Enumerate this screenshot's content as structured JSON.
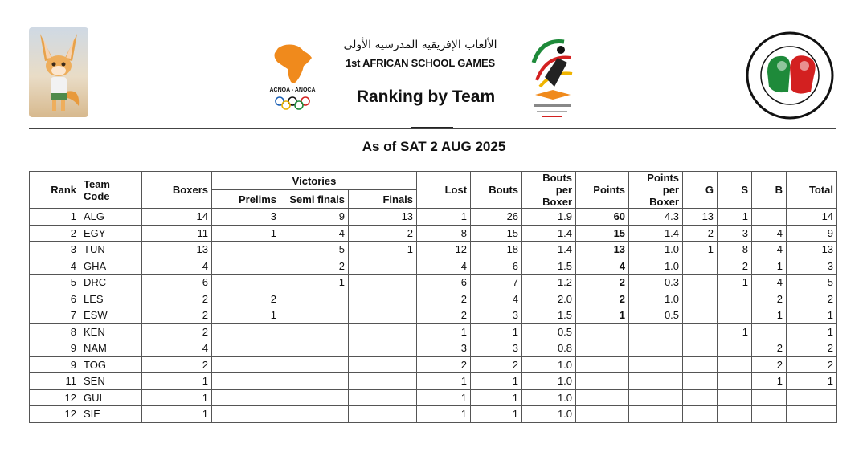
{
  "header": {
    "title_ar": "الألعاب الإفريقية المدرسية الأولى",
    "title_en": "1st AFRICAN SCHOOL GAMES",
    "main_title": "Ranking by Team",
    "acnoa_label": "ACNOA - ANOCA",
    "as_of": "As of SAT 2 AUG 2025"
  },
  "colors": {
    "acnoa_orange": "#f08a1c",
    "fed_red": "#d32020",
    "fed_green": "#1e8a3a"
  },
  "table": {
    "headers": {
      "rank": "Rank",
      "team_code": "Team Code",
      "boxers": "Boxers",
      "victories": "Victories",
      "prelims": "Prelims",
      "semi": "Semi finals",
      "finals": "Finals",
      "lost": "Lost",
      "bouts": "Bouts",
      "bouts_per_boxer": "Bouts per Boxer",
      "points": "Points",
      "points_per_boxer": "Points per Boxer",
      "g": "G",
      "s": "S",
      "b": "B",
      "total": "Total"
    },
    "rows": [
      {
        "rank": "1",
        "code": "ALG",
        "boxers": "14",
        "prelims": "3",
        "semi": "9",
        "finals": "13",
        "lost": "1",
        "bouts": "26",
        "bpb": "1.9",
        "points": "60",
        "ppb": "4.3",
        "g": "13",
        "s": "1",
        "b": "",
        "total": "14"
      },
      {
        "rank": "2",
        "code": "EGY",
        "boxers": "11",
        "prelims": "1",
        "semi": "4",
        "finals": "2",
        "lost": "8",
        "bouts": "15",
        "bpb": "1.4",
        "points": "15",
        "ppb": "1.4",
        "g": "2",
        "s": "3",
        "b": "4",
        "total": "9"
      },
      {
        "rank": "3",
        "code": "TUN",
        "boxers": "13",
        "prelims": "",
        "semi": "5",
        "finals": "1",
        "lost": "12",
        "bouts": "18",
        "bpb": "1.4",
        "points": "13",
        "ppb": "1.0",
        "g": "1",
        "s": "8",
        "b": "4",
        "total": "13"
      },
      {
        "rank": "4",
        "code": "GHA",
        "boxers": "4",
        "prelims": "",
        "semi": "2",
        "finals": "",
        "lost": "4",
        "bouts": "6",
        "bpb": "1.5",
        "points": "4",
        "ppb": "1.0",
        "g": "",
        "s": "2",
        "b": "1",
        "total": "3"
      },
      {
        "rank": "5",
        "code": "DRC",
        "boxers": "6",
        "prelims": "",
        "semi": "1",
        "finals": "",
        "lost": "6",
        "bouts": "7",
        "bpb": "1.2",
        "points": "2",
        "ppb": "0.3",
        "g": "",
        "s": "1",
        "b": "4",
        "total": "5"
      },
      {
        "rank": "6",
        "code": "LES",
        "boxers": "2",
        "prelims": "2",
        "semi": "",
        "finals": "",
        "lost": "2",
        "bouts": "4",
        "bpb": "2.0",
        "points": "2",
        "ppb": "1.0",
        "g": "",
        "s": "",
        "b": "2",
        "total": "2"
      },
      {
        "rank": "7",
        "code": "ESW",
        "boxers": "2",
        "prelims": "1",
        "semi": "",
        "finals": "",
        "lost": "2",
        "bouts": "3",
        "bpb": "1.5",
        "points": "1",
        "ppb": "0.5",
        "g": "",
        "s": "",
        "b": "1",
        "total": "1"
      },
      {
        "rank": "8",
        "code": "KEN",
        "boxers": "2",
        "prelims": "",
        "semi": "",
        "finals": "",
        "lost": "1",
        "bouts": "1",
        "bpb": "0.5",
        "points": "",
        "ppb": "",
        "g": "",
        "s": "1",
        "b": "",
        "total": "1"
      },
      {
        "rank": "9",
        "code": "NAM",
        "boxers": "4",
        "prelims": "",
        "semi": "",
        "finals": "",
        "lost": "3",
        "bouts": "3",
        "bpb": "0.8",
        "points": "",
        "ppb": "",
        "g": "",
        "s": "",
        "b": "2",
        "total": "2"
      },
      {
        "rank": "9",
        "code": "TOG",
        "boxers": "2",
        "prelims": "",
        "semi": "",
        "finals": "",
        "lost": "2",
        "bouts": "2",
        "bpb": "1.0",
        "points": "",
        "ppb": "",
        "g": "",
        "s": "",
        "b": "2",
        "total": "2"
      },
      {
        "rank": "11",
        "code": "SEN",
        "boxers": "1",
        "prelims": "",
        "semi": "",
        "finals": "",
        "lost": "1",
        "bouts": "1",
        "bpb": "1.0",
        "points": "",
        "ppb": "",
        "g": "",
        "s": "",
        "b": "1",
        "total": "1"
      },
      {
        "rank": "12",
        "code": "GUI",
        "boxers": "1",
        "prelims": "",
        "semi": "",
        "finals": "",
        "lost": "1",
        "bouts": "1",
        "bpb": "1.0",
        "points": "",
        "ppb": "",
        "g": "",
        "s": "",
        "b": "",
        "total": ""
      },
      {
        "rank": "12",
        "code": "SIE",
        "boxers": "1",
        "prelims": "",
        "semi": "",
        "finals": "",
        "lost": "1",
        "bouts": "1",
        "bpb": "1.0",
        "points": "",
        "ppb": "",
        "g": "",
        "s": "",
        "b": "",
        "total": ""
      }
    ]
  }
}
